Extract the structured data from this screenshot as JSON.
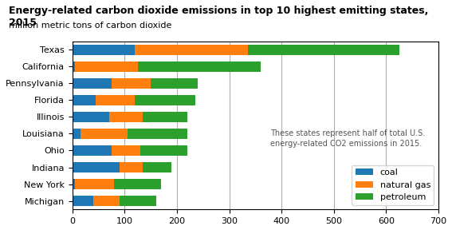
{
  "chart_data": {
    "type": "bar",
    "orientation": "horizontal",
    "stacked": true,
    "title": "Energy-related carbon dioxide emissions in top 10 highest emitting states, 2015",
    "subtitle": "million metric tons of carbon dioxide",
    "annotation": "These states represent half of total U.S.\nenergy-related CO2 emissions in 2015.",
    "categories": [
      "Texas",
      "California",
      "Pennsylvania",
      "Florida",
      "Illinois",
      "Louisiana",
      "Ohio",
      "Indiana",
      "New York",
      "Michigan"
    ],
    "series": [
      {
        "name": "coal",
        "values": [
          120,
          5,
          75,
          45,
          70,
          15,
          75,
          90,
          5,
          40
        ]
      },
      {
        "name": "natural gas",
        "values": [
          215,
          120,
          75,
          75,
          65,
          90,
          55,
          45,
          75,
          50
        ]
      },
      {
        "name": "petroleum",
        "values": [
          290,
          235,
          90,
          115,
          85,
          115,
          90,
          55,
          90,
          70
        ]
      }
    ],
    "xlim": [
      0,
      700
    ],
    "xticks": [
      0,
      100,
      200,
      300,
      400,
      500,
      600,
      700
    ],
    "grid": true,
    "legend": "lower right"
  }
}
